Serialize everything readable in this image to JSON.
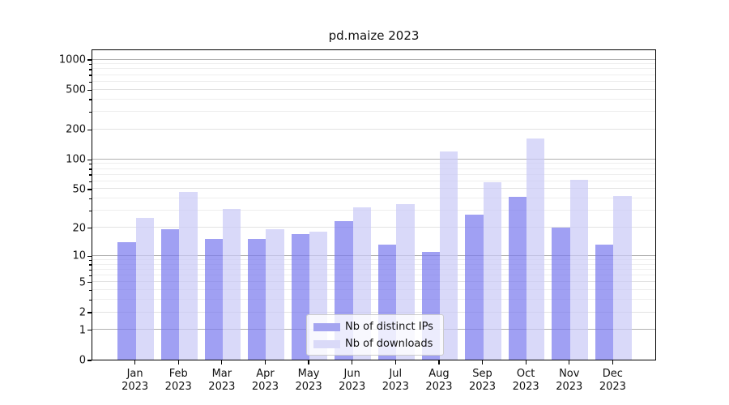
{
  "title": "pd.maize 2023",
  "chart_data": {
    "type": "bar",
    "title": "pd.maize 2023",
    "categories": [
      "Jan",
      "Feb",
      "Mar",
      "Apr",
      "May",
      "Jun",
      "Jul",
      "Aug",
      "Sep",
      "Oct",
      "Nov",
      "Dec"
    ],
    "year_label": "2023",
    "series": [
      {
        "name": "Nb of distinct IPs",
        "values": [
          14,
          19,
          15,
          15,
          17,
          23,
          13,
          11,
          27,
          41,
          20,
          13
        ]
      },
      {
        "name": "Nb of downloads",
        "values": [
          25,
          46,
          31,
          19,
          18,
          32,
          35,
          118,
          58,
          160,
          62,
          42
        ]
      }
    ],
    "yscale": "log1p",
    "ylim": [
      0,
      1000
    ],
    "y_ticks": [
      0,
      1,
      2,
      5,
      10,
      20,
      50,
      100,
      200,
      500,
      1000
    ],
    "y_major_gridlines": [
      1,
      10,
      100,
      1000
    ],
    "y_minor_gridlines": [
      3,
      4,
      6,
      7,
      8,
      9,
      30,
      40,
      60,
      70,
      80,
      90,
      300,
      400,
      600,
      700,
      800,
      900
    ],
    "grid": true,
    "legend_position": "lower center"
  },
  "legend": {
    "entries": [
      "Nb of distinct IPs",
      "Nb of downloads"
    ]
  },
  "colors": {
    "bar_distinct_ips": "rgba(124,124,238,0.72)",
    "bar_downloads": "rgba(203,203,246,0.72)",
    "legend_swatch_ips": "#a4a4f0",
    "legend_swatch_downloads": "#dadaf8",
    "grid_major": "#b0b0b0",
    "grid_minor": "#e2e2e2",
    "spine": "#000000",
    "text": "#111111"
  }
}
